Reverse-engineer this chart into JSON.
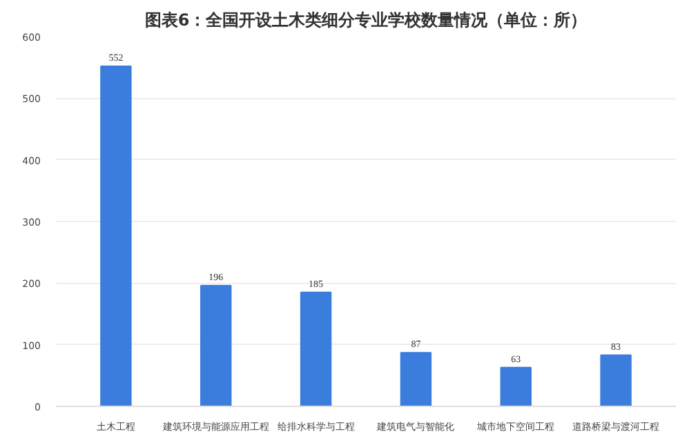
{
  "chart_data": {
    "type": "bar",
    "title": "图表6：全国开设土木类细分专业学校数量情况（单位：所）",
    "categories": [
      "土木工程",
      "建筑环境与能源应用工程",
      "给排水科学与工程",
      "建筑电气与智能化",
      "城市地下空间工程",
      "道路桥梁与渡河工程"
    ],
    "values": [
      552,
      196,
      185,
      87,
      63,
      83
    ],
    "color": "#3b7ddd",
    "ylim": [
      0,
      600
    ],
    "yticks": [
      0,
      100,
      200,
      300,
      400,
      500,
      600
    ],
    "grid": "y",
    "data_labels": true
  }
}
